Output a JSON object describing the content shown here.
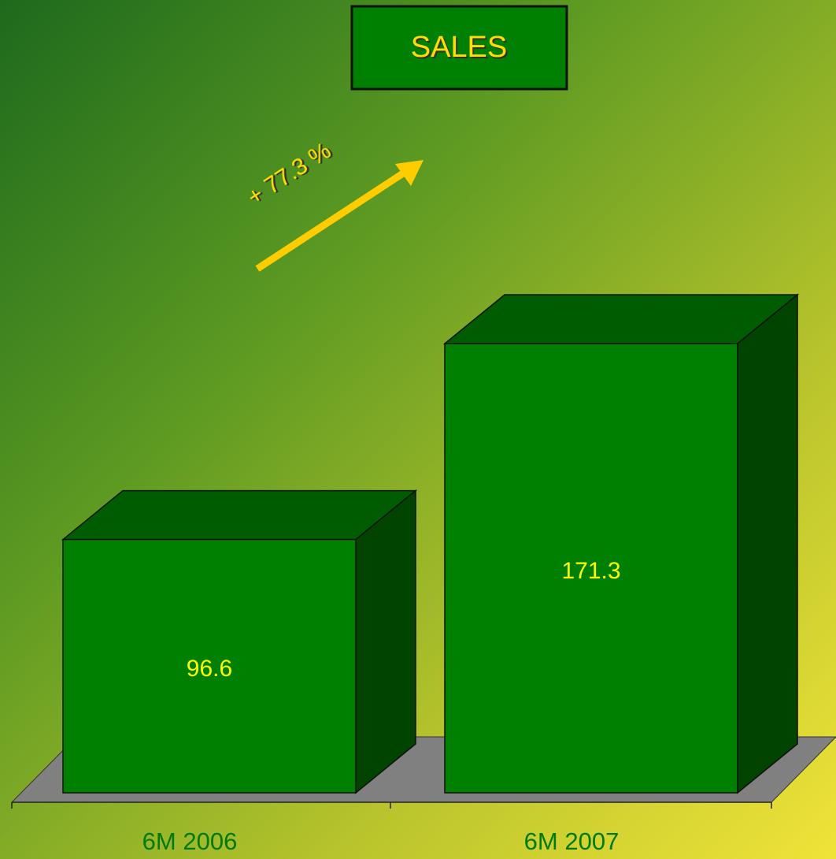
{
  "chart_data": {
    "type": "bar",
    "title": "SALES",
    "annotation": "+ 77.3 %",
    "categories": [
      "6M 2006",
      "6M 2007"
    ],
    "values": [
      96.6,
      171.3
    ],
    "color": "#008000"
  }
}
